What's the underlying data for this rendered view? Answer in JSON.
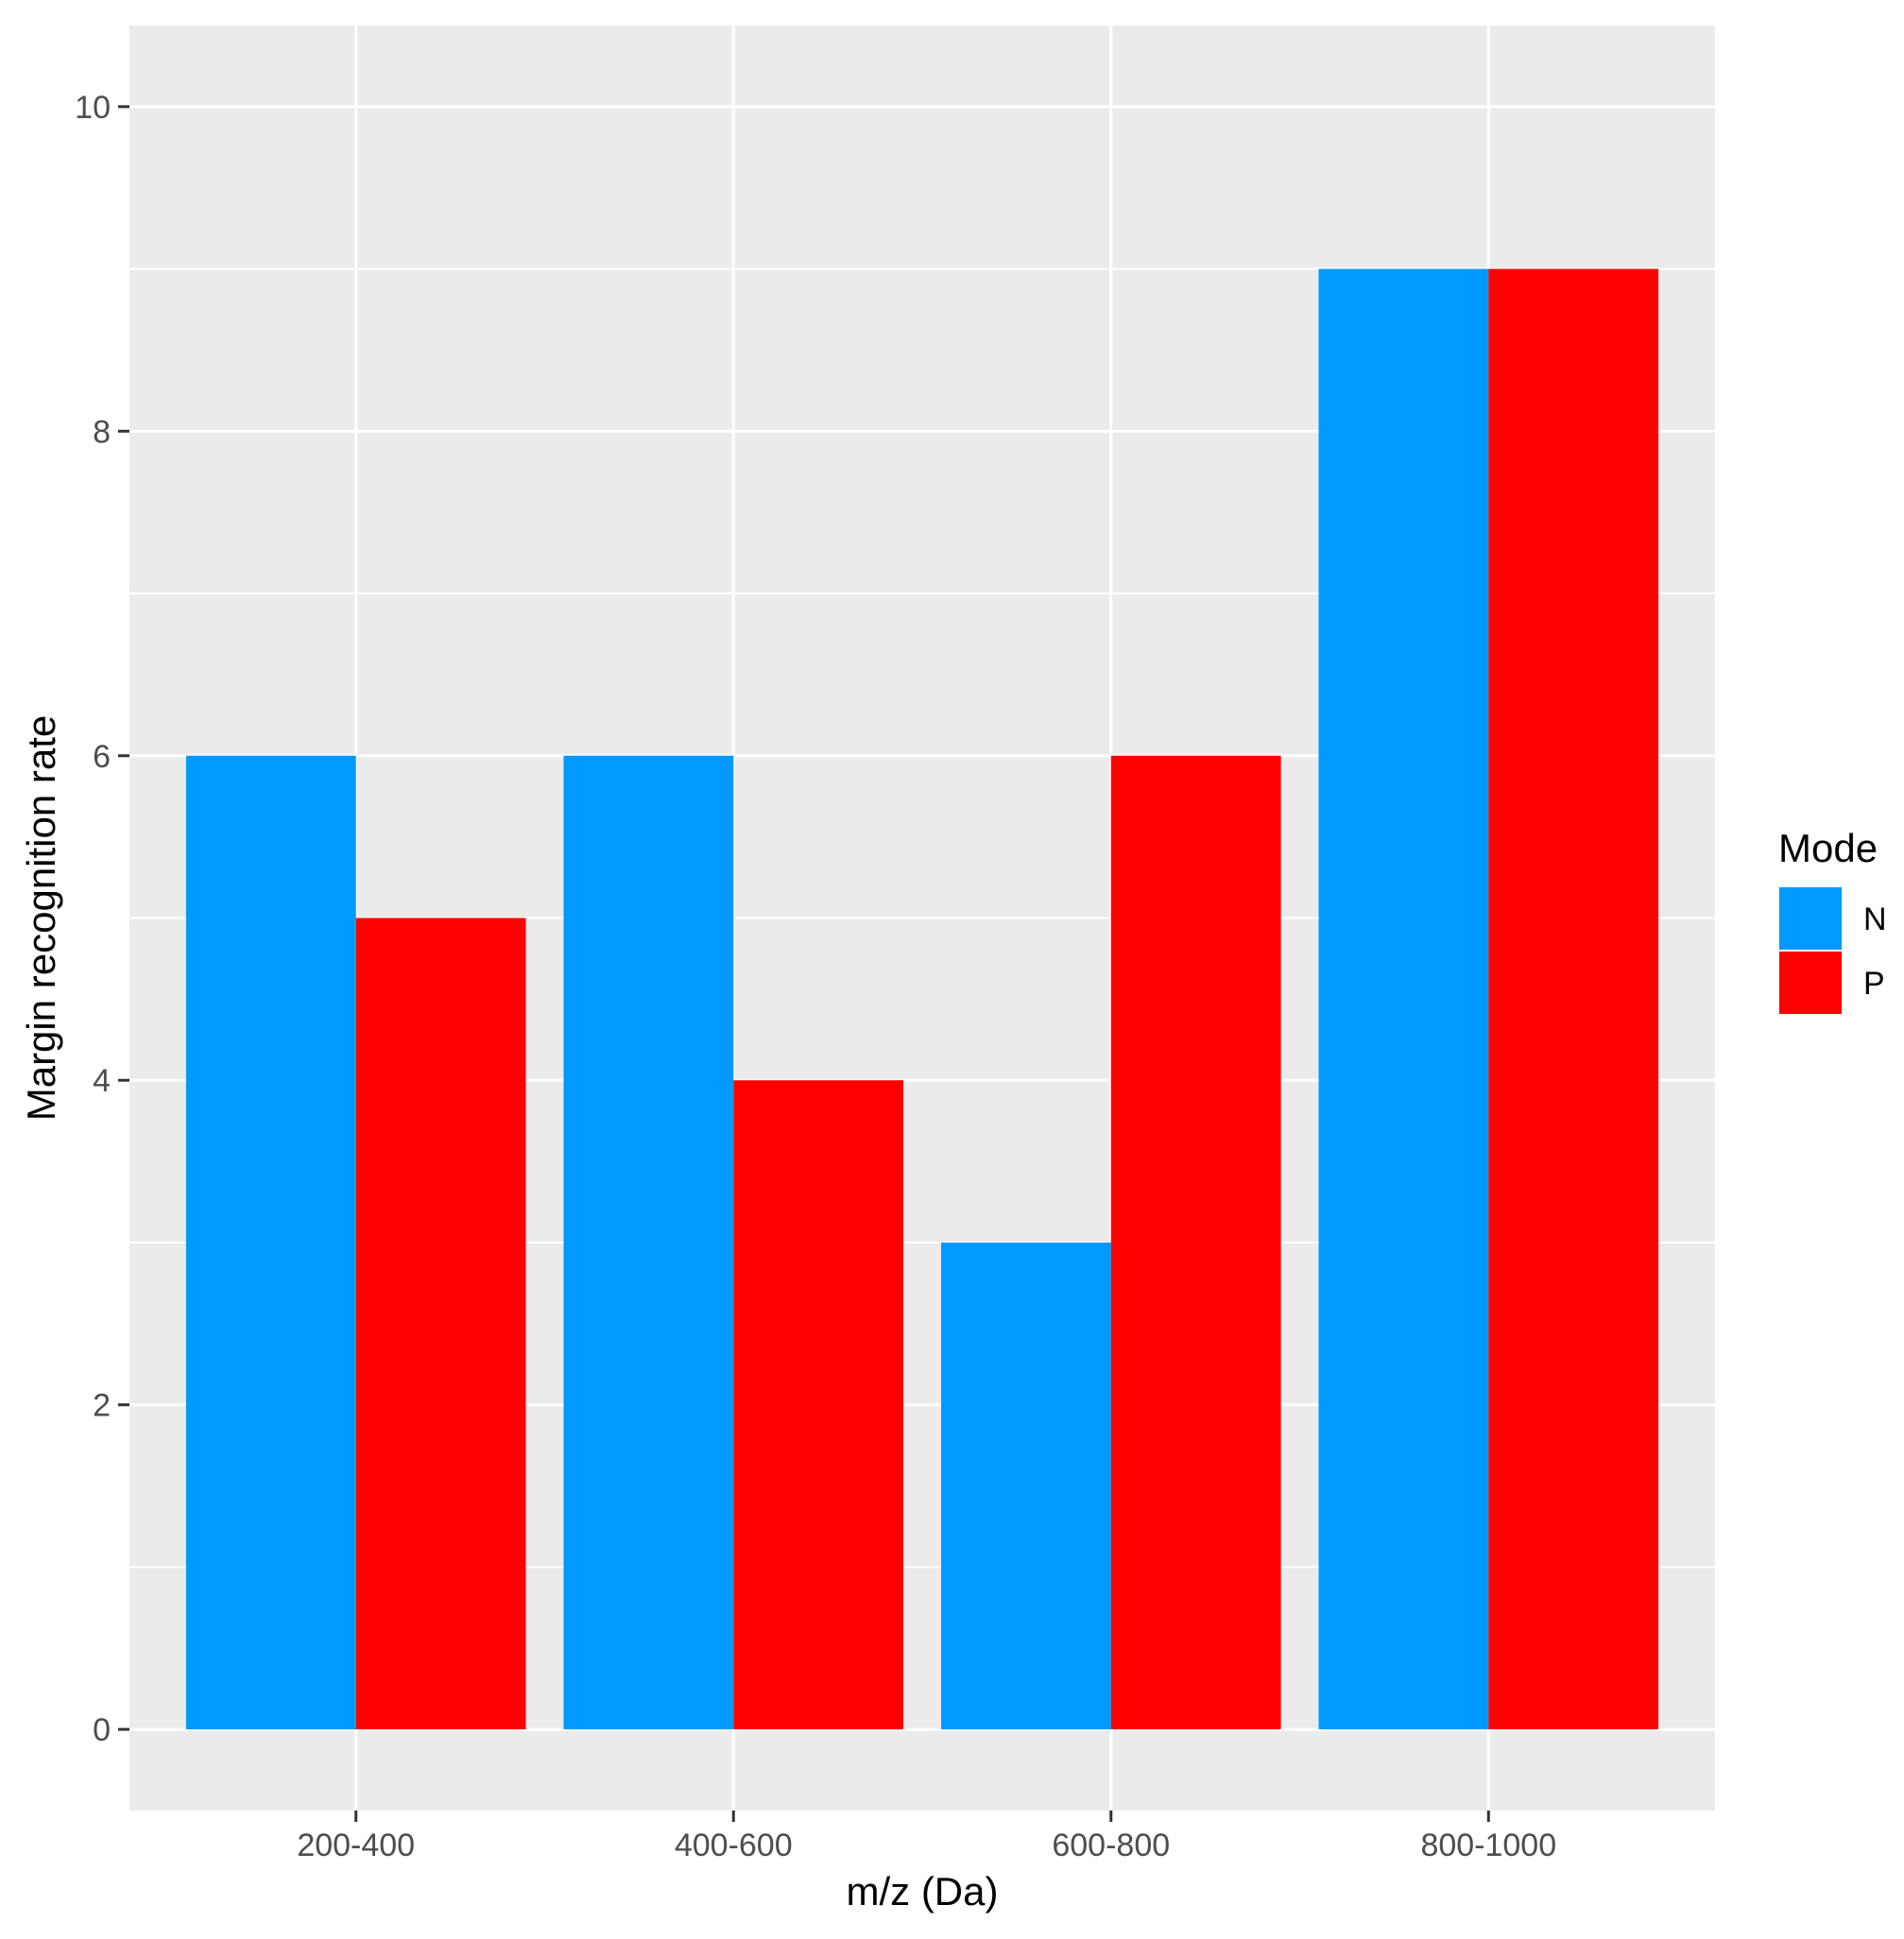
{
  "chart_data": {
    "type": "bar",
    "title": "",
    "xlabel": "m/z (Da)",
    "ylabel": "Margin recognition rate",
    "categories": [
      "200-400",
      "400-600",
      "600-800",
      "800-1000"
    ],
    "series": [
      {
        "name": "N",
        "values": [
          6,
          6,
          3,
          9
        ]
      },
      {
        "name": "P",
        "values": [
          5,
          4,
          6,
          9
        ]
      }
    ],
    "ylim": [
      -0.5,
      10.5
    ],
    "yticks": [
      0,
      2,
      4,
      6,
      8,
      10
    ],
    "ytick_labels": [
      "0",
      "2",
      "4",
      "6",
      "8",
      "10"
    ],
    "grid": true,
    "legend": {
      "title": "Mode",
      "placement": "right",
      "entries": [
        "N",
        "P"
      ]
    },
    "colors": {
      "N": "#0099ff",
      "P": "#ff0000",
      "panel_background": "#ebebeb",
      "grid_major": "#ffffff"
    }
  }
}
